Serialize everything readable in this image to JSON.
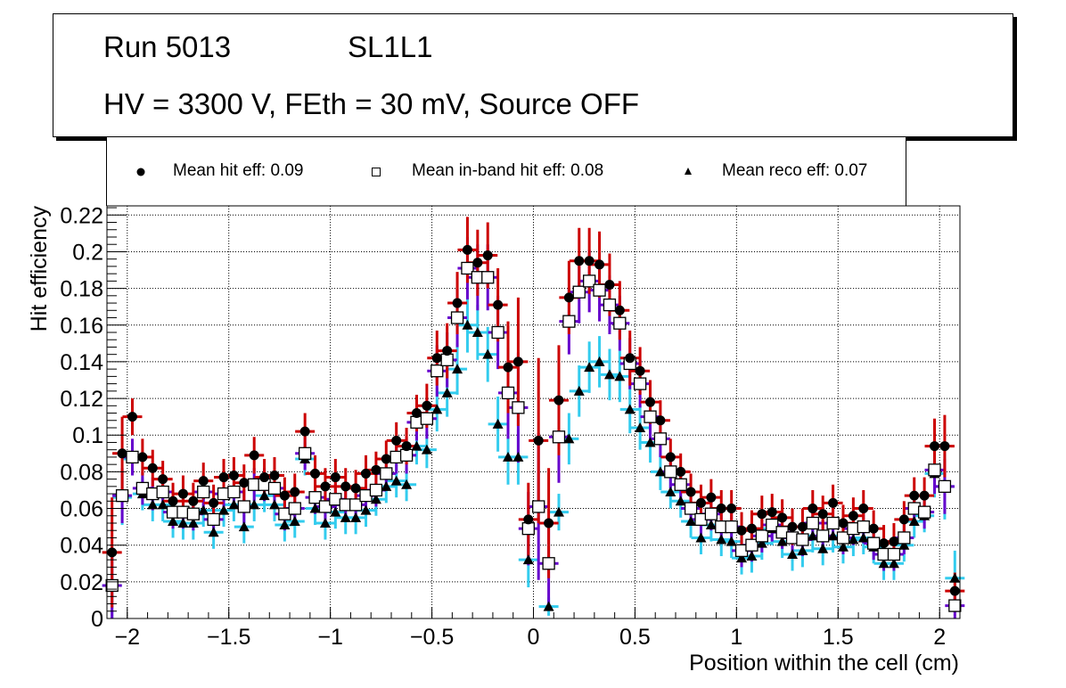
{
  "title": {
    "run": "Run 5013",
    "layer": "SL1L1",
    "conditions": "HV = 3300 V, FEth = 30 mV, Source OFF"
  },
  "legend": [
    {
      "marker": "filled-circle",
      "label": "Mean hit  eff: 0.09"
    },
    {
      "marker": "open-square",
      "label": "Mean in-band hit eff: 0.08"
    },
    {
      "marker": "filled-triangle",
      "label": "Mean reco eff: 0.07"
    }
  ],
  "colors": {
    "hit_error": "#cc0000",
    "inband_error": "#6600cc",
    "reco_error": "#33ccee",
    "marker": "#000000",
    "grid": "#000000"
  },
  "chart_data": {
    "type": "scatter",
    "title": "Run 5013 SL1L1 — HV = 3300 V, FEth = 30 mV, Source OFF",
    "xlabel": "Position within the cell (cm)",
    "ylabel": "Hit efficiency",
    "xlim": [
      -2.1,
      2.1
    ],
    "ylim": [
      0,
      0.225
    ],
    "xticks": [
      -2,
      -1.5,
      -1,
      -0.5,
      0,
      0.5,
      1,
      1.5,
      2
    ],
    "xtick_labels": [
      "−2",
      "−1.5",
      "−1",
      "−0.5",
      "0",
      "0.5",
      "1",
      "1.5",
      "2"
    ],
    "yticks": [
      0,
      0.02,
      0.04,
      0.06,
      0.08,
      0.1,
      0.12,
      0.14,
      0.16,
      0.18,
      0.2,
      0.22
    ],
    "ytick_labels": [
      "0",
      "0.02",
      "0.04",
      "0.06",
      "0.08",
      "0.1",
      "0.12",
      "0.14",
      "0.16",
      "0.18",
      "0.2",
      "0.22"
    ],
    "grid": true,
    "legend_position": "top",
    "bin_width": 0.05,
    "x_first_center": -2.075,
    "series": [
      {
        "name": "Mean hit  eff: 0.09",
        "marker": "filled-circle",
        "error_color": "#cc0000",
        "values": [
          0.036,
          0.09,
          0.11,
          0.088,
          0.082,
          0.076,
          0.064,
          0.068,
          0.064,
          0.075,
          0.063,
          0.077,
          0.078,
          0.074,
          0.089,
          0.077,
          0.078,
          0.067,
          0.069,
          0.102,
          0.079,
          0.072,
          0.077,
          0.072,
          0.071,
          0.079,
          0.081,
          0.087,
          0.097,
          0.094,
          0.112,
          0.116,
          0.142,
          0.146,
          0.172,
          0.201,
          0.194,
          0.198,
          0.171,
          0.137,
          0.14,
          0.054,
          0.097,
          0.052,
          0.119,
          0.175,
          0.195,
          0.195,
          0.193,
          0.182,
          0.168,
          0.142,
          0.135,
          0.118,
          0.108,
          0.088,
          0.08,
          0.069,
          0.063,
          0.066,
          0.06,
          0.06,
          0.048,
          0.049,
          0.057,
          0.058,
          0.055,
          0.05,
          0.05,
          0.06,
          0.057,
          0.063,
          0.052,
          0.056,
          0.06,
          0.049,
          0.041,
          0.042,
          0.054,
          0.067,
          0.067,
          0.094,
          0.094,
          0.015
        ],
        "errors": [
          0.03,
          0.02,
          0.01,
          0.01,
          0.01,
          0.01,
          0.01,
          0.01,
          0.01,
          0.01,
          0.01,
          0.01,
          0.01,
          0.01,
          0.01,
          0.01,
          0.01,
          0.01,
          0.01,
          0.01,
          0.01,
          0.01,
          0.01,
          0.01,
          0.01,
          0.01,
          0.01,
          0.01,
          0.01,
          0.01,
          0.01,
          0.012,
          0.015,
          0.015,
          0.017,
          0.018,
          0.018,
          0.018,
          0.02,
          0.025,
          0.035,
          0.02,
          0.045,
          0.03,
          0.03,
          0.02,
          0.018,
          0.018,
          0.018,
          0.017,
          0.016,
          0.015,
          0.013,
          0.012,
          0.011,
          0.01,
          0.01,
          0.01,
          0.01,
          0.01,
          0.01,
          0.01,
          0.01,
          0.01,
          0.01,
          0.01,
          0.01,
          0.01,
          0.01,
          0.01,
          0.01,
          0.01,
          0.01,
          0.01,
          0.01,
          0.01,
          0.01,
          0.01,
          0.01,
          0.01,
          0.01,
          0.015,
          0.017,
          0.01
        ]
      },
      {
        "name": "Mean in-band hit eff: 0.08",
        "marker": "open-square",
        "error_color": "#6600cc",
        "values": [
          0.018,
          0.067,
          0.088,
          0.071,
          0.068,
          0.069,
          0.058,
          0.058,
          0.057,
          0.069,
          0.054,
          0.068,
          0.069,
          0.061,
          0.073,
          0.073,
          0.071,
          0.057,
          0.06,
          0.09,
          0.066,
          0.061,
          0.065,
          0.062,
          0.062,
          0.067,
          0.07,
          0.079,
          0.088,
          0.089,
          0.107,
          0.109,
          0.135,
          0.141,
          0.164,
          0.191,
          0.186,
          0.186,
          0.156,
          0.123,
          0.115,
          0.049,
          0.061,
          0.03,
          0.099,
          0.162,
          0.178,
          0.184,
          0.179,
          0.171,
          0.161,
          0.139,
          0.128,
          0.11,
          0.098,
          0.08,
          0.073,
          0.06,
          0.054,
          0.057,
          0.05,
          0.05,
          0.037,
          0.04,
          0.045,
          0.051,
          0.047,
          0.044,
          0.043,
          0.052,
          0.045,
          0.052,
          0.044,
          0.049,
          0.05,
          0.041,
          0.035,
          0.035,
          0.044,
          0.06,
          0.058,
          0.081,
          0.072,
          0.007
        ],
        "errors": [
          0.02,
          0.015,
          0.01,
          0.009,
          0.009,
          0.009,
          0.009,
          0.009,
          0.009,
          0.009,
          0.009,
          0.009,
          0.009,
          0.009,
          0.009,
          0.009,
          0.009,
          0.009,
          0.009,
          0.009,
          0.009,
          0.009,
          0.009,
          0.009,
          0.009,
          0.009,
          0.009,
          0.009,
          0.009,
          0.01,
          0.01,
          0.011,
          0.014,
          0.015,
          0.016,
          0.017,
          0.018,
          0.018,
          0.02,
          0.025,
          0.03,
          0.02,
          0.04,
          0.025,
          0.025,
          0.018,
          0.017,
          0.017,
          0.017,
          0.016,
          0.015,
          0.014,
          0.013,
          0.012,
          0.01,
          0.009,
          0.009,
          0.009,
          0.009,
          0.009,
          0.009,
          0.009,
          0.009,
          0.009,
          0.009,
          0.009,
          0.009,
          0.009,
          0.009,
          0.009,
          0.009,
          0.009,
          0.009,
          0.009,
          0.009,
          0.009,
          0.009,
          0.009,
          0.009,
          0.009,
          0.009,
          0.013,
          0.015,
          0.01
        ]
      },
      {
        "name": "Mean reco eff: 0.07",
        "marker": "filled-triangle",
        "error_color": "#33ccee",
        "values": [
          0.018,
          0.066,
          0.087,
          0.068,
          0.062,
          0.062,
          0.053,
          0.052,
          0.052,
          0.059,
          0.047,
          0.059,
          0.062,
          0.05,
          0.062,
          0.067,
          0.062,
          0.051,
          0.053,
          0.087,
          0.06,
          0.052,
          0.058,
          0.055,
          0.055,
          0.059,
          0.065,
          0.072,
          0.075,
          0.073,
          0.094,
          0.092,
          0.114,
          0.123,
          0.136,
          0.16,
          0.156,
          0.144,
          0.106,
          0.088,
          0.088,
          0.032,
          null,
          0.0065,
          0.058,
          0.098,
          0.124,
          0.137,
          0.14,
          0.133,
          0.132,
          0.114,
          0.104,
          0.096,
          0.08,
          0.069,
          0.064,
          0.053,
          0.044,
          0.051,
          0.043,
          0.042,
          0.033,
          0.034,
          0.041,
          0.049,
          0.042,
          0.035,
          0.037,
          0.045,
          0.038,
          0.045,
          0.039,
          0.043,
          0.044,
          0.039,
          0.03,
          0.03,
          0.04,
          0.053,
          0.056,
          0.079,
          0.072,
          0.022
        ],
        "errors": [
          0.02,
          0.015,
          0.009,
          0.009,
          0.009,
          0.009,
          0.009,
          0.009,
          0.009,
          0.009,
          0.009,
          0.009,
          0.009,
          0.009,
          0.009,
          0.009,
          0.009,
          0.009,
          0.009,
          0.009,
          0.009,
          0.009,
          0.009,
          0.009,
          0.009,
          0.009,
          0.009,
          0.009,
          0.009,
          0.009,
          0.01,
          0.01,
          0.012,
          0.013,
          0.014,
          0.015,
          0.015,
          0.015,
          0.015,
          0.015,
          0.015,
          0.015,
          0,
          0.005,
          0.01,
          0.014,
          0.014,
          0.014,
          0.014,
          0.014,
          0.014,
          0.013,
          0.012,
          0.011,
          0.01,
          0.009,
          0.009,
          0.009,
          0.009,
          0.009,
          0.009,
          0.009,
          0.009,
          0.009,
          0.009,
          0.009,
          0.009,
          0.009,
          0.009,
          0.009,
          0.009,
          0.009,
          0.009,
          0.009,
          0.009,
          0.009,
          0.009,
          0.009,
          0.009,
          0.009,
          0.009,
          0.013,
          0.018,
          0.015
        ]
      }
    ]
  }
}
